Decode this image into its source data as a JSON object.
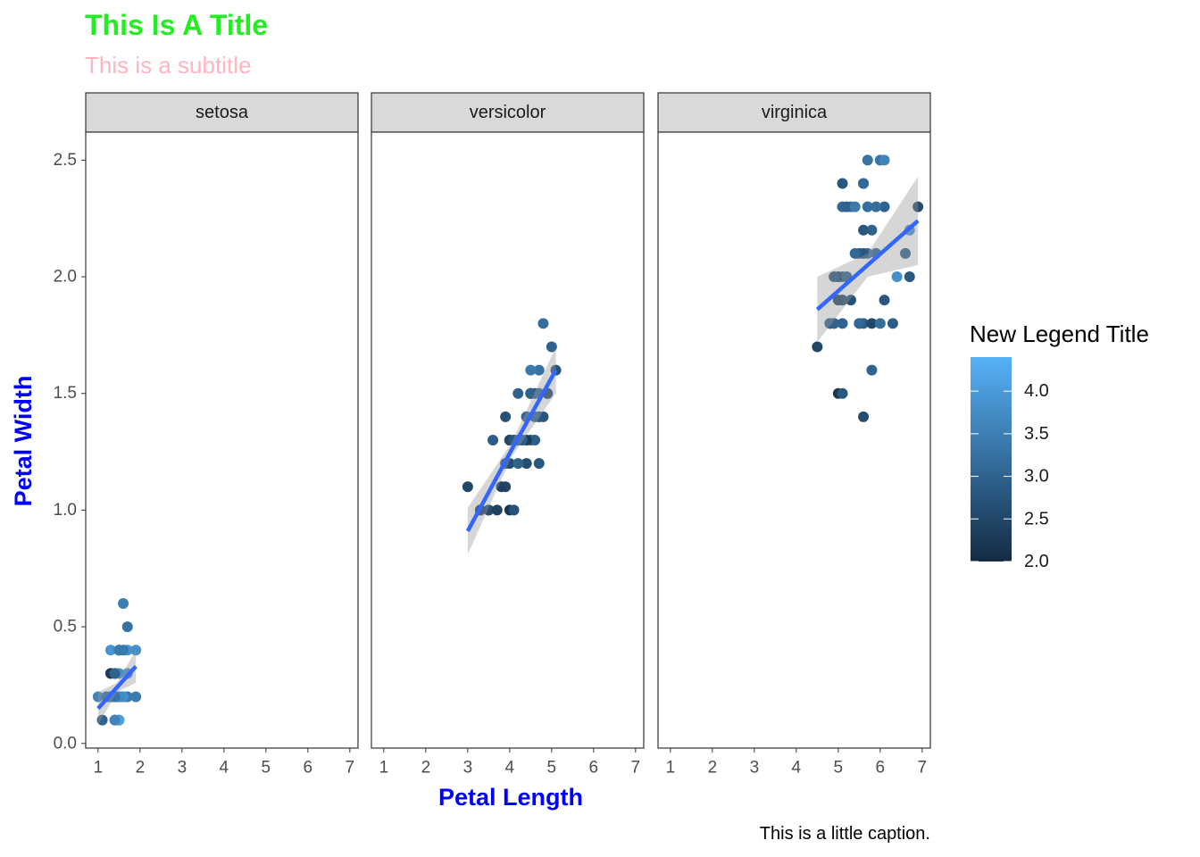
{
  "chart_data": {
    "type": "scatter",
    "title": "This Is A Title",
    "title_color": "#22ee22",
    "subtitle": "This is a subtitle",
    "subtitle_color": "#ffb6c1",
    "caption": "This is a little caption.",
    "x_label": "Petal Length",
    "y_label": "Petal Width",
    "axis_label_color": "#0000ff",
    "fit_color": "#3366ff",
    "band_color": "#999999",
    "xlim": [
      0.705,
      7.195
    ],
    "xticks": [
      1,
      2,
      3,
      4,
      5,
      6,
      7
    ],
    "ylim": [
      -0.02,
      2.62
    ],
    "yticks": [
      {
        "value": 0,
        "label": "0.0"
      },
      0.5,
      {
        "value": 1,
        "label": "1.0"
      },
      1.5,
      {
        "value": 2,
        "label": "2.0"
      },
      2.5
    ],
    "colorbar": {
      "title": "New Legend Title",
      "lim": [
        2.0,
        4.4
      ],
      "low": "#132b43",
      "high": "#56b1f7",
      "ticks": [
        {
          "value": 2,
          "label": "2.0"
        },
        2.5,
        {
          "value": 3,
          "label": "3.0"
        },
        3.5,
        {
          "value": 4,
          "label": "4.0"
        }
      ]
    },
    "facets": [
      {
        "name": "setosa",
        "x": [
          1.4,
          1.4,
          1.3,
          1.5,
          1.4,
          1.7,
          1.4,
          1.5,
          1.4,
          1.5,
          1.5,
          1.6,
          1.4,
          1.1,
          1.2,
          1.5,
          1.3,
          1.4,
          1.7,
          1.5,
          1.7,
          1.5,
          1.0,
          1.7,
          1.9,
          1.6,
          1.6,
          1.5,
          1.4,
          1.6,
          1.6,
          1.5,
          1.5,
          1.4,
          1.5,
          1.2,
          1.3,
          1.4,
          1.3,
          1.5,
          1.3,
          1.3,
          1.3,
          1.6,
          1.9,
          1.4,
          1.6,
          1.4,
          1.5,
          1.4
        ],
        "y": [
          0.2,
          0.2,
          0.2,
          0.2,
          0.2,
          0.4,
          0.3,
          0.2,
          0.2,
          0.1,
          0.2,
          0.2,
          0.1,
          0.1,
          0.2,
          0.4,
          0.4,
          0.3,
          0.3,
          0.3,
          0.2,
          0.4,
          0.2,
          0.5,
          0.2,
          0.2,
          0.4,
          0.2,
          0.2,
          0.2,
          0.2,
          0.4,
          0.1,
          0.2,
          0.2,
          0.2,
          0.2,
          0.1,
          0.2,
          0.2,
          0.3,
          0.3,
          0.2,
          0.6,
          0.4,
          0.3,
          0.2,
          0.2,
          0.2,
          0.2
        ],
        "color_values": [
          3.5,
          3.0,
          3.2,
          3.1,
          3.6,
          3.9,
          3.4,
          3.4,
          2.9,
          3.1,
          3.7,
          3.4,
          3.0,
          3.0,
          4.0,
          4.4,
          3.9,
          3.5,
          3.8,
          3.8,
          3.4,
          3.7,
          3.6,
          3.3,
          3.4,
          3.0,
          3.4,
          3.5,
          3.4,
          3.2,
          3.1,
          3.4,
          4.1,
          4.2,
          3.1,
          3.2,
          3.5,
          3.6,
          3.0,
          3.4,
          3.5,
          2.3,
          3.2,
          3.5,
          3.8,
          3.0,
          3.8,
          3.2,
          3.7,
          3.3
        ],
        "fit": {
          "x": [
            1.0,
            1.45,
            1.9
          ],
          "y": [
            0.15,
            0.24,
            0.33
          ],
          "lower": [
            0.08,
            0.22,
            0.26
          ],
          "upper": [
            0.22,
            0.26,
            0.4
          ]
        }
      },
      {
        "name": "versicolor",
        "x": [
          4.7,
          4.5,
          4.9,
          4.0,
          4.6,
          4.5,
          4.7,
          3.3,
          4.6,
          3.9,
          3.5,
          4.2,
          4.0,
          4.7,
          3.6,
          4.4,
          4.5,
          4.1,
          4.5,
          3.9,
          4.8,
          4.0,
          4.9,
          4.7,
          4.3,
          4.4,
          4.8,
          5.0,
          4.5,
          3.5,
          3.8,
          3.7,
          3.9,
          5.1,
          4.5,
          4.5,
          4.7,
          4.4,
          4.1,
          4.0,
          4.4,
          4.6,
          4.0,
          3.3,
          4.2,
          4.2,
          4.2,
          4.3,
          3.0,
          4.1
        ],
        "y": [
          1.4,
          1.5,
          1.5,
          1.3,
          1.5,
          1.3,
          1.6,
          1.0,
          1.3,
          1.4,
          1.0,
          1.5,
          1.0,
          1.4,
          1.3,
          1.4,
          1.5,
          1.0,
          1.5,
          1.1,
          1.8,
          1.3,
          1.5,
          1.2,
          1.3,
          1.4,
          1.4,
          1.7,
          1.5,
          1.0,
          1.1,
          1.0,
          1.2,
          1.6,
          1.5,
          1.6,
          1.5,
          1.3,
          1.3,
          1.3,
          1.2,
          1.4,
          1.2,
          1.0,
          1.3,
          1.2,
          1.3,
          1.3,
          1.1,
          1.3
        ],
        "color_values": [
          3.2,
          3.2,
          3.1,
          2.3,
          2.8,
          2.8,
          3.3,
          2.4,
          2.9,
          2.7,
          2.0,
          3.0,
          2.2,
          2.9,
          2.9,
          3.1,
          3.0,
          2.7,
          2.2,
          2.5,
          3.2,
          2.8,
          2.5,
          2.8,
          2.9,
          3.0,
          2.8,
          3.0,
          2.9,
          2.6,
          2.4,
          2.4,
          2.7,
          2.7,
          3.0,
          3.4,
          3.1,
          2.3,
          3.0,
          2.5,
          2.6,
          3.0,
          2.6,
          2.3,
          2.7,
          3.0,
          2.9,
          2.9,
          2.5,
          2.8
        ],
        "fit": {
          "x": [
            3.0,
            4.05,
            5.1
          ],
          "y": [
            0.91,
            1.26,
            1.6
          ],
          "lower": [
            0.81,
            1.23,
            1.5
          ],
          "upper": [
            1.01,
            1.29,
            1.7
          ]
        }
      },
      {
        "name": "virginica",
        "x": [
          6.0,
          5.1,
          5.9,
          5.6,
          5.8,
          6.6,
          4.5,
          6.3,
          5.8,
          6.1,
          5.1,
          5.3,
          5.5,
          5.0,
          5.1,
          5.3,
          5.5,
          6.7,
          6.9,
          5.0,
          5.7,
          4.9,
          6.7,
          4.9,
          5.7,
          6.0,
          4.8,
          4.9,
          5.6,
          5.8,
          6.1,
          6.4,
          5.6,
          5.1,
          5.6,
          6.1,
          5.6,
          5.5,
          4.8,
          5.4,
          5.6,
          5.1,
          5.1,
          5.9,
          5.7,
          5.2,
          5.0,
          5.2,
          5.4,
          5.1
        ],
        "y": [
          2.5,
          1.9,
          2.1,
          1.8,
          2.2,
          2.1,
          1.7,
          1.8,
          1.8,
          2.5,
          2.0,
          1.9,
          2.1,
          2.0,
          2.4,
          2.3,
          1.8,
          2.2,
          2.3,
          1.5,
          2.3,
          2.0,
          2.0,
          1.8,
          2.1,
          1.8,
          1.8,
          1.8,
          2.1,
          1.6,
          1.9,
          2.0,
          2.2,
          1.5,
          1.4,
          2.3,
          2.4,
          1.8,
          1.8,
          2.1,
          2.4,
          2.3,
          1.9,
          2.3,
          2.5,
          2.3,
          1.9,
          2.0,
          2.3,
          1.8
        ],
        "color_values": [
          3.3,
          2.7,
          3.0,
          2.9,
          3.0,
          3.0,
          2.5,
          2.9,
          2.5,
          3.6,
          3.2,
          2.7,
          3.0,
          2.5,
          2.8,
          3.2,
          3.0,
          3.8,
          2.6,
          2.2,
          3.2,
          2.8,
          2.8,
          2.7,
          3.3,
          3.2,
          2.8,
          3.0,
          2.8,
          3.0,
          2.8,
          3.8,
          2.8,
          2.8,
          2.6,
          3.0,
          3.4,
          3.1,
          3.0,
          3.1,
          3.1,
          3.1,
          2.7,
          3.2,
          3.3,
          3.0,
          2.5,
          3.0,
          3.4,
          3.0
        ],
        "fit": {
          "x": [
            4.5,
            5.7,
            6.9
          ],
          "y": [
            1.86,
            2.05,
            2.24
          ],
          "lower": [
            1.72,
            2.0,
            2.05
          ],
          "upper": [
            2.0,
            2.1,
            2.43
          ]
        }
      }
    ]
  }
}
